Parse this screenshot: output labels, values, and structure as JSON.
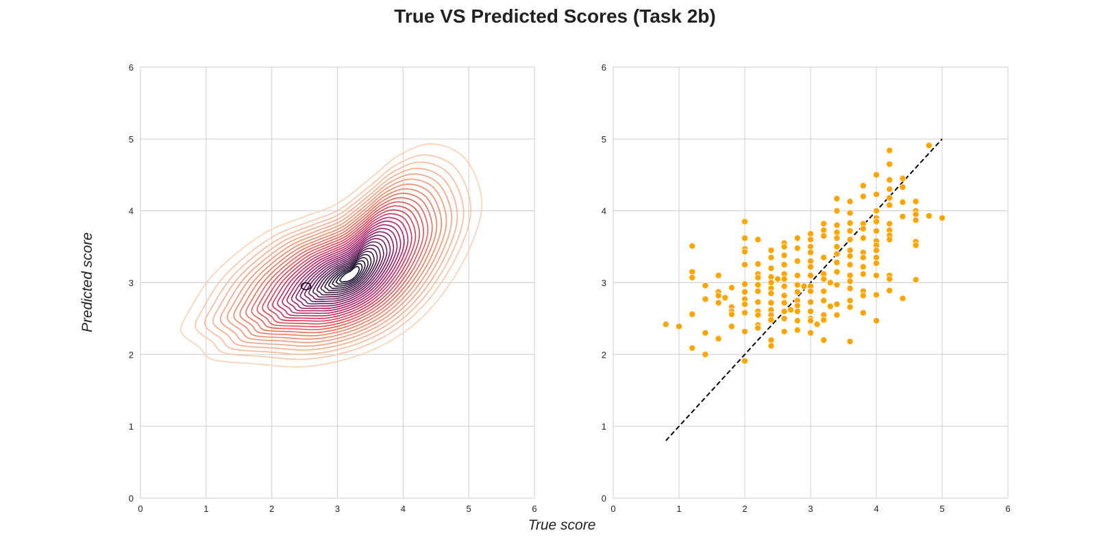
{
  "figure": {
    "title": "True VS Predicted Scores (Task 2b)",
    "xlabel": "True score",
    "ylabel": "Predicted score"
  },
  "colors": {
    "grid": "#cccccc",
    "frame": "#cccccc",
    "scatter_point": "#ffa500",
    "scatter_edge": "#ffffff",
    "identity_line": "#000000",
    "density_palette": [
      "#fbd0b2",
      "#f6a582",
      "#f07858",
      "#e2434d",
      "#c22262",
      "#8e1566",
      "#5a1654",
      "#2b1137",
      "#0b0924"
    ]
  },
  "chart_data": [
    {
      "type": "contour",
      "subtype": "kde-density",
      "xlim": [
        0,
        6
      ],
      "ylim": [
        0,
        6
      ],
      "xticks": [
        0,
        1,
        2,
        3,
        4,
        5,
        6
      ],
      "yticks": [
        0,
        1,
        2,
        3,
        4,
        5,
        6
      ],
      "grid": true,
      "density_peak": {
        "x": 3.2,
        "y": 3.1
      },
      "outer_extent": {
        "x": [
          0.6,
          5.2
        ],
        "y": [
          1.8,
          4.9
        ]
      }
    },
    {
      "type": "scatter",
      "xlim": [
        0,
        6
      ],
      "ylim": [
        0,
        6
      ],
      "xticks": [
        0,
        1,
        2,
        3,
        4,
        5,
        6
      ],
      "yticks": [
        0,
        1,
        2,
        3,
        4,
        5,
        6
      ],
      "grid": true,
      "reference_line": {
        "style": "dashed",
        "from": [
          0.8,
          0.8
        ],
        "to": [
          5.0,
          5.0
        ]
      },
      "points": [
        [
          0.8,
          2.42
        ],
        [
          1.0,
          2.39
        ],
        [
          1.2,
          3.51
        ],
        [
          1.2,
          3.15
        ],
        [
          1.2,
          3.07
        ],
        [
          1.2,
          2.56
        ],
        [
          1.2,
          2.09
        ],
        [
          1.4,
          2.96
        ],
        [
          1.4,
          2.77
        ],
        [
          1.4,
          2.3
        ],
        [
          1.4,
          2.0
        ],
        [
          1.6,
          3.1
        ],
        [
          1.6,
          2.87
        ],
        [
          1.6,
          2.82
        ],
        [
          1.6,
          2.72
        ],
        [
          1.6,
          2.22
        ],
        [
          1.7,
          2.79
        ],
        [
          1.8,
          2.93
        ],
        [
          1.8,
          2.66
        ],
        [
          1.8,
          2.6
        ],
        [
          1.8,
          2.56
        ],
        [
          1.8,
          2.39
        ],
        [
          2.0,
          3.85
        ],
        [
          2.0,
          3.62
        ],
        [
          2.0,
          3.47
        ],
        [
          2.0,
          3.43
        ],
        [
          2.0,
          3.25
        ],
        [
          2.0,
          2.98
        ],
        [
          2.0,
          2.87
        ],
        [
          2.0,
          2.77
        ],
        [
          2.0,
          2.7
        ],
        [
          2.0,
          2.58
        ],
        [
          2.0,
          2.32
        ],
        [
          2.0,
          1.91
        ],
        [
          2.2,
          3.6
        ],
        [
          2.2,
          3.26
        ],
        [
          2.2,
          3.12
        ],
        [
          2.2,
          3.07
        ],
        [
          2.2,
          2.97
        ],
        [
          2.2,
          2.88
        ],
        [
          2.2,
          2.73
        ],
        [
          2.2,
          2.6
        ],
        [
          2.2,
          2.55
        ],
        [
          2.2,
          2.41
        ],
        [
          2.2,
          2.37
        ],
        [
          2.4,
          3.45
        ],
        [
          2.4,
          3.35
        ],
        [
          2.4,
          3.2
        ],
        [
          2.4,
          3.08
        ],
        [
          2.4,
          3.0
        ],
        [
          2.4,
          2.92
        ],
        [
          2.4,
          2.85
        ],
        [
          2.4,
          2.72
        ],
        [
          2.4,
          2.62
        ],
        [
          2.4,
          2.55
        ],
        [
          2.4,
          2.48
        ],
        [
          2.4,
          2.2
        ],
        [
          2.4,
          2.12
        ],
        [
          2.5,
          3.05
        ],
        [
          2.6,
          3.55
        ],
        [
          2.6,
          3.5
        ],
        [
          2.6,
          3.38
        ],
        [
          2.6,
          3.25
        ],
        [
          2.6,
          3.12
        ],
        [
          2.6,
          3.05
        ],
        [
          2.6,
          2.95
        ],
        [
          2.6,
          2.82
        ],
        [
          2.6,
          2.72
        ],
        [
          2.6,
          2.6
        ],
        [
          2.6,
          2.5
        ],
        [
          2.6,
          2.32
        ],
        [
          2.7,
          2.62
        ],
        [
          2.8,
          3.62
        ],
        [
          2.8,
          3.48
        ],
        [
          2.8,
          3.3
        ],
        [
          2.8,
          3.1
        ],
        [
          2.8,
          2.97
        ],
        [
          2.8,
          2.87
        ],
        [
          2.8,
          2.75
        ],
        [
          2.8,
          2.68
        ],
        [
          2.8,
          2.6
        ],
        [
          2.8,
          2.47
        ],
        [
          2.8,
          2.34
        ],
        [
          2.9,
          2.95
        ],
        [
          3.0,
          3.68
        ],
        [
          3.0,
          3.6
        ],
        [
          3.0,
          3.5
        ],
        [
          3.0,
          3.42
        ],
        [
          3.0,
          3.3
        ],
        [
          3.0,
          3.22
        ],
        [
          3.0,
          3.1
        ],
        [
          3.0,
          2.95
        ],
        [
          3.0,
          2.88
        ],
        [
          3.0,
          2.73
        ],
        [
          3.0,
          2.6
        ],
        [
          3.0,
          2.5
        ],
        [
          3.0,
          2.47
        ],
        [
          3.0,
          2.3
        ],
        [
          3.1,
          2.42
        ],
        [
          3.2,
          3.82
        ],
        [
          3.2,
          3.73
        ],
        [
          3.2,
          3.65
        ],
        [
          3.2,
          3.35
        ],
        [
          3.2,
          3.12
        ],
        [
          3.2,
          3.05
        ],
        [
          3.2,
          2.88
        ],
        [
          3.2,
          2.75
        ],
        [
          3.2,
          2.55
        ],
        [
          3.2,
          2.48
        ],
        [
          3.2,
          2.2
        ],
        [
          3.3,
          3.0
        ],
        [
          3.3,
          2.67
        ],
        [
          3.4,
          4.17
        ],
        [
          3.4,
          4.0
        ],
        [
          3.4,
          3.8
        ],
        [
          3.4,
          3.7
        ],
        [
          3.4,
          3.62
        ],
        [
          3.4,
          3.5
        ],
        [
          3.4,
          3.4
        ],
        [
          3.4,
          3.28
        ],
        [
          3.4,
          3.15
        ],
        [
          3.4,
          2.97
        ],
        [
          3.4,
          2.7
        ],
        [
          3.4,
          2.55
        ],
        [
          3.6,
          4.13
        ],
        [
          3.6,
          3.97
        ],
        [
          3.6,
          3.83
        ],
        [
          3.6,
          3.72
        ],
        [
          3.6,
          3.6
        ],
        [
          3.6,
          3.45
        ],
        [
          3.6,
          3.37
        ],
        [
          3.6,
          3.25
        ],
        [
          3.6,
          3.1
        ],
        [
          3.6,
          3.02
        ],
        [
          3.6,
          2.92
        ],
        [
          3.6,
          2.75
        ],
        [
          3.6,
          2.66
        ],
        [
          3.6,
          2.18
        ],
        [
          3.8,
          4.35
        ],
        [
          3.8,
          4.2
        ],
        [
          3.8,
          3.82
        ],
        [
          3.8,
          3.75
        ],
        [
          3.8,
          3.62
        ],
        [
          3.8,
          3.42
        ],
        [
          3.8,
          3.35
        ],
        [
          3.8,
          3.22
        ],
        [
          3.8,
          3.12
        ],
        [
          3.8,
          2.88
        ],
        [
          3.8,
          2.82
        ],
        [
          3.8,
          2.58
        ],
        [
          4.0,
          4.5
        ],
        [
          4.0,
          4.23
        ],
        [
          4.0,
          4.0
        ],
        [
          4.0,
          3.9
        ],
        [
          4.0,
          3.85
        ],
        [
          4.0,
          3.72
        ],
        [
          4.0,
          3.58
        ],
        [
          4.0,
          3.52
        ],
        [
          4.0,
          3.45
        ],
        [
          4.0,
          3.35
        ],
        [
          4.0,
          3.27
        ],
        [
          4.0,
          3.1
        ],
        [
          4.0,
          2.83
        ],
        [
          4.0,
          2.47
        ],
        [
          4.2,
          4.84
        ],
        [
          4.2,
          4.65
        ],
        [
          4.2,
          4.43
        ],
        [
          4.2,
          4.3
        ],
        [
          4.2,
          4.18
        ],
        [
          4.2,
          4.08
        ],
        [
          4.2,
          3.82
        ],
        [
          4.2,
          3.73
        ],
        [
          4.2,
          3.66
        ],
        [
          4.2,
          3.6
        ],
        [
          4.2,
          3.1
        ],
        [
          4.2,
          3.05
        ],
        [
          4.2,
          2.89
        ],
        [
          4.4,
          4.45
        ],
        [
          4.4,
          4.33
        ],
        [
          4.4,
          4.12
        ],
        [
          4.4,
          3.92
        ],
        [
          4.4,
          2.78
        ],
        [
          4.6,
          4.13
        ],
        [
          4.6,
          4.0
        ],
        [
          4.6,
          3.95
        ],
        [
          4.6,
          3.87
        ],
        [
          4.6,
          3.57
        ],
        [
          4.6,
          3.52
        ],
        [
          4.6,
          3.04
        ],
        [
          4.8,
          4.91
        ],
        [
          4.8,
          3.93
        ],
        [
          5.0,
          3.9
        ]
      ]
    }
  ]
}
